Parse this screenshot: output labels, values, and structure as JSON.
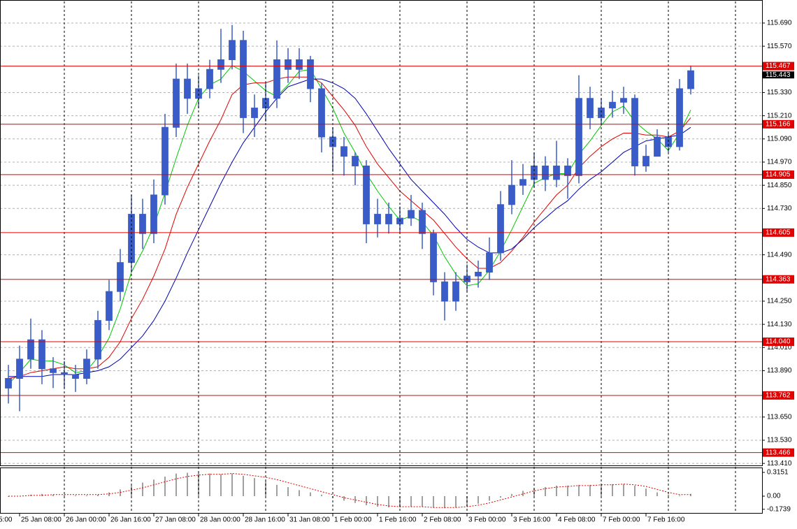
{
  "chart_data": {
    "type": "candlestick",
    "color": "#3a5cc8",
    "open": [
      113.8,
      113.85,
      113.95,
      114.05,
      113.9,
      113.88,
      113.87,
      113.85,
      113.95,
      114.15,
      114.3,
      114.45,
      114.7,
      114.6,
      114.8,
      115.15,
      115.4,
      115.3,
      115.35,
      115.45,
      115.5,
      115.6,
      115.2,
      115.25,
      115.3,
      115.5,
      115.45,
      115.5,
      115.35,
      115.1,
      115.05,
      115.0,
      114.95,
      114.65,
      114.7,
      114.65,
      114.68,
      114.72,
      114.6,
      114.35,
      114.25,
      114.35,
      114.38,
      114.4,
      114.5,
      114.75,
      114.85,
      114.88,
      114.95,
      114.88,
      114.95,
      114.9,
      115.3,
      115.2,
      115.25,
      115.28,
      115.3,
      114.95,
      115.0,
      115.1,
      115.05,
      115.35
    ],
    "high": [
      113.92,
      114.02,
      114.16,
      114.1,
      113.96,
      113.94,
      113.92,
      114.0,
      114.2,
      114.36,
      114.52,
      114.8,
      114.78,
      114.88,
      115.22,
      115.48,
      115.48,
      115.42,
      115.5,
      115.66,
      115.68,
      115.65,
      115.32,
      115.38,
      115.6,
      115.56,
      115.56,
      115.52,
      115.38,
      115.15,
      115.1,
      115.02,
      114.98,
      114.78,
      114.76,
      114.74,
      114.8,
      114.76,
      114.62,
      114.4,
      114.4,
      114.44,
      114.46,
      114.58,
      114.82,
      114.98,
      114.96,
      115.02,
      115.0,
      115.08,
      114.99,
      115.42,
      115.36,
      115.3,
      115.34,
      115.36,
      115.32,
      115.06,
      115.14,
      115.12,
      115.4,
      115.47
    ],
    "low": [
      113.72,
      113.68,
      113.9,
      113.82,
      113.8,
      113.8,
      113.78,
      113.82,
      113.9,
      114.1,
      114.25,
      114.4,
      114.52,
      114.55,
      114.75,
      115.1,
      115.22,
      115.25,
      115.3,
      115.38,
      115.45,
      115.12,
      115.1,
      115.18,
      115.25,
      115.38,
      115.4,
      115.28,
      115.02,
      114.92,
      114.9,
      114.85,
      114.55,
      114.58,
      114.6,
      114.6,
      114.64,
      114.52,
      114.28,
      114.15,
      114.2,
      114.3,
      114.32,
      114.36,
      114.46,
      114.7,
      114.8,
      114.84,
      114.82,
      114.84,
      114.78,
      114.86,
      115.14,
      115.16,
      115.2,
      115.22,
      114.9,
      114.92,
      115.02,
      115.02,
      115.03,
      115.32
    ],
    "close": [
      113.85,
      113.95,
      114.05,
      113.9,
      113.88,
      113.87,
      113.85,
      113.95,
      114.15,
      114.3,
      114.45,
      114.7,
      114.6,
      114.8,
      115.15,
      115.4,
      115.3,
      115.35,
      115.45,
      115.5,
      115.6,
      115.2,
      115.25,
      115.3,
      115.5,
      115.45,
      115.5,
      115.35,
      115.1,
      115.05,
      115.0,
      114.95,
      114.65,
      114.7,
      114.65,
      114.68,
      114.72,
      114.6,
      114.35,
      114.25,
      114.35,
      114.38,
      114.4,
      114.5,
      114.75,
      114.85,
      114.88,
      114.95,
      114.88,
      114.95,
      114.9,
      115.3,
      115.2,
      115.25,
      115.28,
      115.3,
      114.95,
      115.0,
      115.1,
      115.05,
      115.35,
      115.443
    ],
    "series": [
      {
        "color": "#00c800",
        "values": [
          113.82,
          113.88,
          113.95,
          113.94,
          113.94,
          113.92,
          113.88,
          113.89,
          113.96,
          114.06,
          114.21,
          114.4,
          114.51,
          114.64,
          114.81,
          114.99,
          115.16,
          115.3,
          115.37,
          115.4,
          115.47,
          115.44,
          115.39,
          115.34,
          115.31,
          115.37,
          115.44,
          115.45,
          115.35,
          115.25,
          115.12,
          115.02,
          114.91,
          114.82,
          114.74,
          114.67,
          114.69,
          114.66,
          114.59,
          114.48,
          114.39,
          114.33,
          114.34,
          114.41,
          114.51,
          114.62,
          114.74,
          114.86,
          114.89,
          114.91,
          114.91,
          115.01,
          115.08,
          115.16,
          115.23,
          115.26,
          115.18,
          115.13,
          115.09,
          115.03,
          115.12,
          115.24
        ]
      },
      {
        "color": "#e00000",
        "values": [
          113.85,
          113.86,
          113.88,
          113.89,
          113.9,
          113.91,
          113.9,
          113.9,
          113.91,
          113.96,
          114.04,
          114.16,
          114.26,
          114.38,
          114.52,
          114.7,
          114.84,
          114.96,
          115.08,
          115.19,
          115.32,
          115.37,
          115.38,
          115.38,
          115.4,
          115.41,
          115.41,
          115.41,
          115.38,
          115.31,
          115.24,
          115.16,
          115.05,
          114.96,
          114.89,
          114.82,
          114.77,
          114.72,
          114.67,
          114.6,
          114.53,
          114.47,
          114.42,
          114.42,
          114.45,
          114.51,
          114.58,
          114.66,
          114.73,
          114.8,
          114.85,
          114.94,
          115.0,
          115.05,
          115.09,
          115.12,
          115.12,
          115.11,
          115.11,
          115.1,
          115.13,
          115.2
        ]
      },
      {
        "color": "#0000b4",
        "values": [
          113.86,
          113.86,
          113.86,
          113.86,
          113.87,
          113.87,
          113.87,
          113.88,
          113.89,
          113.91,
          113.95,
          114.01,
          114.07,
          114.15,
          114.25,
          114.37,
          114.5,
          114.62,
          114.74,
          114.86,
          114.97,
          115.07,
          115.15,
          115.23,
          115.3,
          115.36,
          115.38,
          115.4,
          115.4,
          115.38,
          115.35,
          115.3,
          115.22,
          115.13,
          115.04,
          114.96,
          114.88,
          114.82,
          114.76,
          114.7,
          114.63,
          114.57,
          114.53,
          114.5,
          114.5,
          114.52,
          114.57,
          114.63,
          114.68,
          114.73,
          114.77,
          114.83,
          114.88,
          114.92,
          114.97,
          115.02,
          115.05,
          115.08,
          115.09,
          115.1,
          115.11,
          115.15
        ]
      }
    ],
    "xlim": [
      -0.75,
      67.375
    ],
    "xticks": [
      {
        "value": -1,
        "label": "5:00"
      },
      {
        "value": 1,
        "label": "25 Jan 08:00"
      },
      {
        "value": 5,
        "label": "26 Jan 00:00"
      },
      {
        "value": 9,
        "label": "26 Jan 16:00"
      },
      {
        "value": 13,
        "label": "27 Jan 08:00"
      },
      {
        "value": 17,
        "label": "28 Jan 00:00"
      },
      {
        "value": 21,
        "label": "28 Jan 16:00"
      },
      {
        "value": 25,
        "label": "31 Jan 08:00"
      },
      {
        "value": 29,
        "label": "1 Feb 00:00"
      },
      {
        "value": 33,
        "label": "1 Feb 16:00"
      },
      {
        "value": 37,
        "label": "2 Feb 08:00"
      },
      {
        "value": 41,
        "label": "3 Feb 00:00"
      },
      {
        "value": 45,
        "label": "3 Feb 16:00"
      },
      {
        "value": 49,
        "label": "4 Feb 08:00"
      },
      {
        "value": 53,
        "label": "7 Feb 00:00"
      },
      {
        "value": 57,
        "label": "7 Feb 16:00"
      }
    ],
    "ylim": [
      113.396,
      115.802
    ],
    "yticks": [
      {
        "value": 115.69,
        "label": "115.690"
      },
      {
        "value": 115.57,
        "label": "115.570"
      },
      {
        "value": 115.33,
        "label": "115.330"
      },
      {
        "value": 115.21,
        "label": "115.210"
      },
      {
        "value": 115.09,
        "label": "115.090"
      },
      {
        "value": 114.97,
        "label": "114.970"
      },
      {
        "value": 114.85,
        "label": "114.850"
      },
      {
        "value": 114.73,
        "label": "114.730"
      },
      {
        "value": 114.49,
        "label": "114.490"
      },
      {
        "value": 114.25,
        "label": "114.250"
      },
      {
        "value": 114.13,
        "label": "114.130"
      },
      {
        "value": 114.01,
        "label": "114.010"
      },
      {
        "value": 113.89,
        "label": "113.890"
      },
      {
        "value": 113.65,
        "label": "113.650"
      },
      {
        "value": 113.53,
        "label": "113.530"
      },
      {
        "value": 113.41,
        "label": "113.410"
      }
    ],
    "grid": true,
    "level_color": "#e00000",
    "levels": [
      115.467,
      115.166,
      114.905,
      114.605,
      114.363,
      {
        "value": 114.04,
        "label": "114.040"
      },
      113.762,
      113.466
    ],
    "last_price": 115.443,
    "indicator": {
      "type": "histogram",
      "color": "#a0a0a0",
      "ylim": [
        -0.2317,
        0.3707
      ],
      "yticks": [
        0.3151,
        {
          "value": 0,
          "label": "0.00"
        },
        -0.1739
      ],
      "values": [
        -0.01,
        0,
        0.02,
        0.03,
        0.02,
        0.02,
        0.01,
        0.01,
        0.02,
        0.05,
        0.09,
        0.14,
        0.18,
        0.22,
        0.26,
        0.3,
        0.31,
        0.31,
        0.3,
        0.29,
        0.3,
        0.27,
        0.24,
        0.2,
        0.15,
        0.12,
        0.08,
        0.05,
        0.02,
        -0.02,
        -0.06,
        -0.09,
        -0.12,
        -0.14,
        -0.15,
        -0.15,
        -0.14,
        -0.14,
        -0.15,
        -0.16,
        -0.15,
        -0.13,
        -0.1,
        -0.06,
        -0.02,
        0.03,
        0.07,
        0.1,
        0.12,
        0.14,
        0.14,
        0.15,
        0.15,
        0.15,
        0.16,
        0.16,
        0.14,
        0.1,
        0.05,
        0.02,
        0.01,
        0.03
      ],
      "signal": {
        "color": "#e00000",
        "values": [
          0,
          0,
          0.01,
          0.01,
          0.02,
          0.02,
          0.02,
          0.02,
          0.02,
          0.03,
          0.05,
          0.08,
          0.11,
          0.15,
          0.19,
          0.23,
          0.26,
          0.28,
          0.29,
          0.29,
          0.3,
          0.29,
          0.27,
          0.25,
          0.22,
          0.18,
          0.14,
          0.1,
          0.06,
          0.02,
          -0.02,
          -0.05,
          -0.08,
          -0.11,
          -0.13,
          -0.14,
          -0.14,
          -0.14,
          -0.15,
          -0.15,
          -0.15,
          -0.14,
          -0.12,
          -0.09,
          -0.05,
          -0.01,
          0.03,
          0.07,
          0.1,
          0.12,
          0.13,
          0.14,
          0.14,
          0.15,
          0.15,
          0.16,
          0.15,
          0.13,
          0.09,
          0.05,
          0.02,
          0.02
        ]
      }
    }
  }
}
